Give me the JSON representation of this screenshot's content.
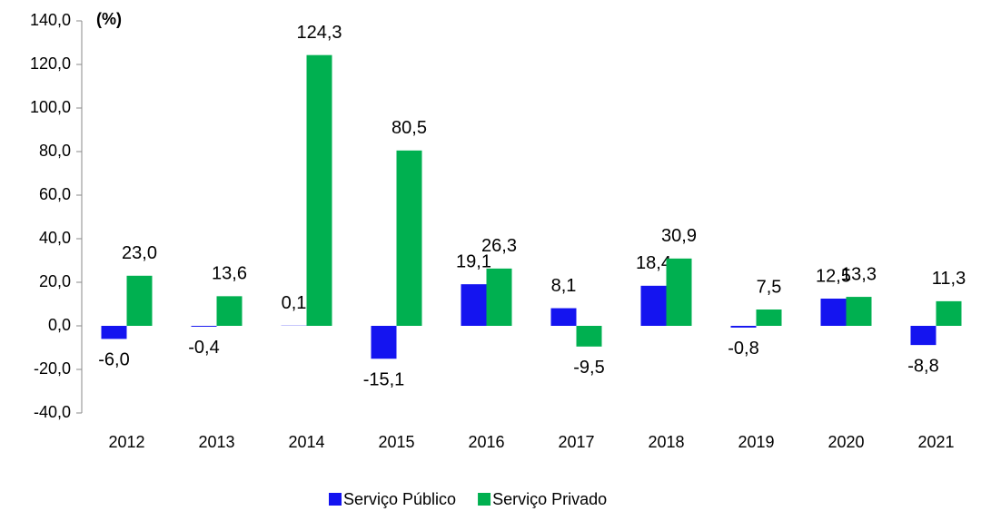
{
  "chart_data": {
    "type": "bar",
    "y_label": "(%)",
    "categories": [
      "2012",
      "2013",
      "2014",
      "2015",
      "2016",
      "2017",
      "2018",
      "2019",
      "2020",
      "2021"
    ],
    "series": [
      {
        "name": "Serviço Público",
        "color": "#1414f0",
        "values": [
          -6.0,
          -0.4,
          0.1,
          -15.1,
          19.1,
          8.1,
          18.4,
          -0.8,
          12.5,
          -8.8
        ],
        "value_labels": [
          "-6,0",
          "-0,4",
          "0,1",
          "-15,1",
          "19,1",
          "8,1",
          "18,4",
          "-0,8",
          "12,5",
          "-8,8"
        ]
      },
      {
        "name": "Serviço Privado",
        "color": "#00b050",
        "values": [
          23.0,
          13.6,
          124.3,
          80.5,
          26.3,
          -9.5,
          30.9,
          7.5,
          13.3,
          11.3
        ],
        "value_labels": [
          "23,0",
          "13,6",
          "124,3",
          "80,5",
          "26,3",
          "-9,5",
          "30,9",
          "7,5",
          "13,3",
          "11,3"
        ]
      }
    ],
    "ylim": [
      -40,
      140
    ],
    "yticks": [
      {
        "value": -40,
        "label": "-40,0"
      },
      {
        "value": -20,
        "label": "-20,0"
      },
      {
        "value": 0,
        "label": "0,0"
      },
      {
        "value": 20,
        "label": "20,0"
      },
      {
        "value": 40,
        "label": "40,0"
      },
      {
        "value": 60,
        "label": "60,0"
      },
      {
        "value": 80,
        "label": "80,0"
      },
      {
        "value": 100,
        "label": "100,0"
      },
      {
        "value": 120,
        "label": "120,0"
      },
      {
        "value": 140,
        "label": "140,0"
      }
    ],
    "legend": "bottom"
  }
}
